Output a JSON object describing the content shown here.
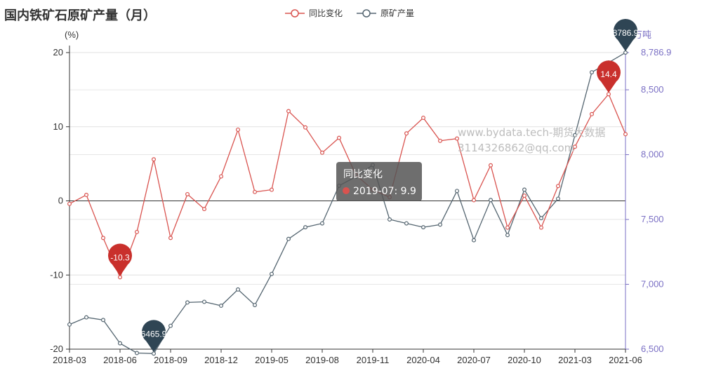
{
  "chart_data": {
    "type": "line",
    "title": "国内铁矿石原矿产量（月）",
    "left_axis": {
      "unit": "(%)",
      "range": [
        -20,
        20
      ],
      "ticks": [
        "20",
        "10",
        "0",
        "-10",
        "-20"
      ]
    },
    "right_axis": {
      "unit": "万吨",
      "range": [
        6500,
        8786.9
      ],
      "ticks": [
        "8,786.9",
        "8,500",
        "8,000",
        "7,500",
        "7,000",
        "6,500"
      ]
    },
    "x_tick_labels": [
      "2018-03",
      "2018-06",
      "2018-09",
      "2018-12",
      "2019-05",
      "2019-08",
      "2019-11",
      "2020-04",
      "2020-07",
      "2020-10",
      "2021-03",
      "2021-06"
    ],
    "legend": {
      "position": "top-center",
      "items": [
        "同比变化",
        "原矿产量"
      ]
    },
    "series": [
      {
        "name": "同比变化",
        "axis": "left",
        "color": "#d9534f",
        "values": [
          -0.4,
          0.8,
          -5,
          -10.3,
          -4.2,
          5.6,
          -5,
          0.9,
          -1.1,
          3.3,
          9.6,
          1.2,
          1.5,
          12.1,
          9.9,
          6.5,
          8.5,
          3.5,
          1.5,
          0.5,
          9.1,
          11.2,
          8.1,
          8.4,
          0.1,
          4.8,
          -3.6,
          0.7,
          -3.6,
          2,
          7.3,
          11.7,
          14.4,
          9
        ]
      },
      {
        "name": "原矿产量",
        "axis": "right",
        "color": "#546570",
        "values": [
          6690,
          6745,
          6725,
          6545,
          6470,
          6465.9,
          6680,
          6860,
          6865,
          6835,
          6960,
          6840,
          7080,
          7350,
          7440,
          7470,
          7760,
          7830,
          7920,
          7500,
          7470,
          7440,
          7460,
          7720,
          7340,
          7650,
          7380,
          7730,
          7510,
          7660,
          8150,
          8635,
          8710,
          8786.9
        ]
      }
    ],
    "markers": [
      {
        "series": "同比变化",
        "label": "-10.3",
        "index": 3,
        "value": -10.3
      },
      {
        "series": "同比变化",
        "label": "14.4",
        "index": 32,
        "value": 14.4
      },
      {
        "series": "原矿产量",
        "label": "6465.9",
        "index": 5,
        "value": 6465.9
      },
      {
        "series": "原矿产量",
        "label": "8786.9",
        "index": 33,
        "value": 8786.9
      }
    ],
    "tooltip": {
      "title": "同比变化",
      "text": "2019-07: 9.9"
    },
    "watermark": [
      "www.bydata.tech-期货大数据",
      "3114326862@qq.com"
    ],
    "grid": true
  }
}
